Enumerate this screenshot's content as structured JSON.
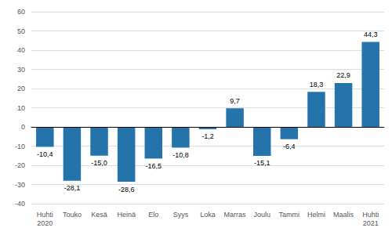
{
  "chart_data": {
    "type": "bar",
    "categories": [
      "Huhti\n2020",
      "Touko",
      "Kesä",
      "Heinä",
      "Elo",
      "Syys",
      "Loka",
      "Marras",
      "Joulu",
      "Tammi",
      "Helmi",
      "Maalis",
      "Huhti\n2021"
    ],
    "values": [
      -10.4,
      -28.1,
      -15.0,
      -28.6,
      -16.5,
      -10.8,
      -1.2,
      9.7,
      -15.1,
      -6.4,
      18.3,
      22.9,
      44.3
    ],
    "value_labels": [
      "-10,4",
      "-28,1",
      "-15,0",
      "-28,6",
      "-16,5",
      "-10,8",
      "-1,2",
      "9,7",
      "-15,1",
      "-6,4",
      "18,3",
      "22,9",
      "44,3"
    ],
    "data_labels": true,
    "color": "#2474ab",
    "ylim": [
      -40,
      60
    ],
    "yticks": [
      -40,
      -30,
      -20,
      -10,
      0,
      10,
      20,
      30,
      40,
      50,
      60
    ],
    "grid": true
  }
}
